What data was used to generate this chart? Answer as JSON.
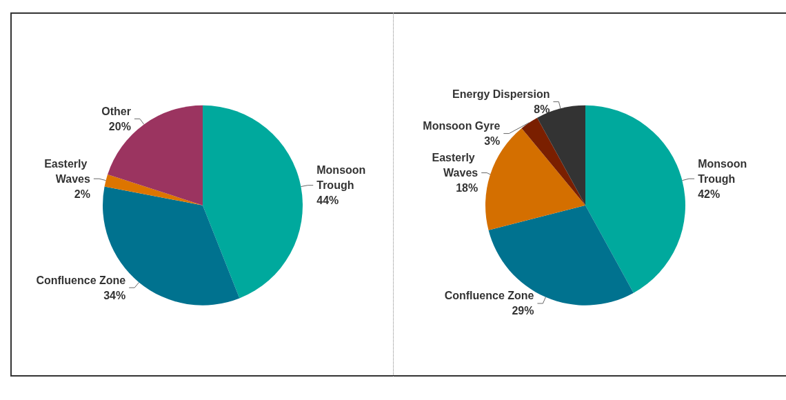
{
  "chart_data": [
    {
      "type": "pie",
      "categories": [
        "Monsoon Trough",
        "Confluence Zone",
        "Easterly Waves",
        "Other"
      ],
      "values": [
        44,
        34,
        2,
        20
      ],
      "value_labels": [
        "44%",
        "34%",
        "2%",
        "20%"
      ],
      "colors": [
        "#00a99d",
        "#00728f",
        "#dd7500",
        "#9b3460"
      ]
    },
    {
      "type": "pie",
      "categories": [
        "Monsoon Trough",
        "Confluence Zone",
        "Easterly Waves",
        "Monsoon Gyre",
        "Energy Dispersion"
      ],
      "values": [
        42,
        29,
        18,
        3,
        8
      ],
      "value_labels": [
        "42%",
        "29%",
        "18%",
        "3%",
        "8%"
      ],
      "colors": [
        "#00a99d",
        "#00728f",
        "#d46f00",
        "#7a1f00",
        "#333333"
      ]
    }
  ]
}
